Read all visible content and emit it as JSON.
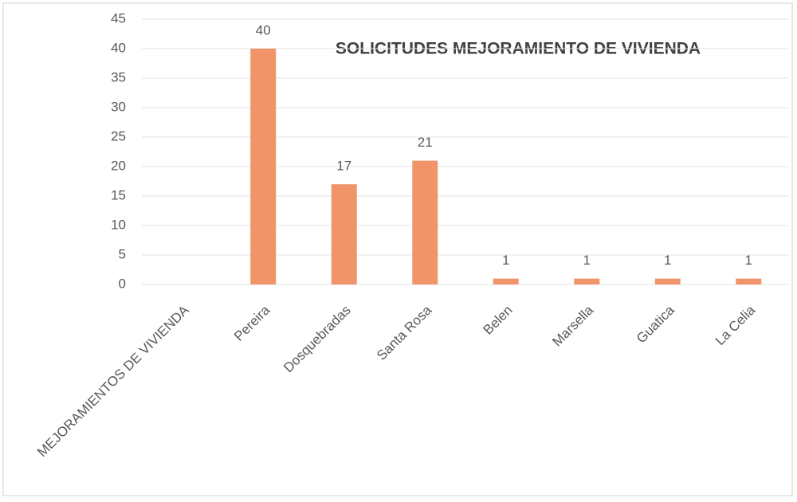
{
  "chart_data": {
    "type": "bar",
    "title": "SOLICITUDES MEJORAMIENTO DE VIVIENDA",
    "categories": [
      "MEJORAMIENTOS DE VIVIENDA",
      "Pereira",
      "Dosquebradas",
      "Santa Rosa",
      "Belen",
      "Marsella",
      "Guatica",
      "La Celia"
    ],
    "values": [
      null,
      40,
      17,
      21,
      1,
      1,
      1,
      1
    ],
    "color": "#f0956a",
    "ylim": [
      0,
      45
    ],
    "yticks": [
      0,
      5,
      10,
      15,
      20,
      25,
      30,
      35,
      40,
      45
    ],
    "grid": true,
    "data_labels": true
  }
}
